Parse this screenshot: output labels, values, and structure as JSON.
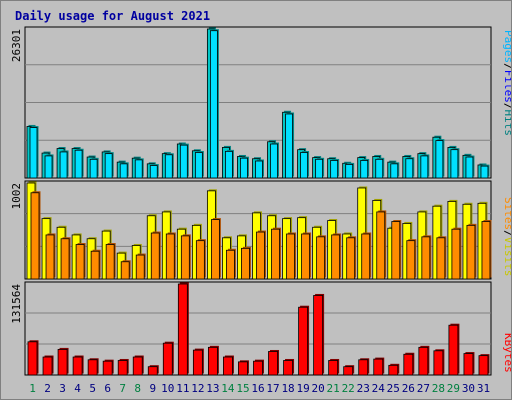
{
  "title": "Daily usage for August 2021",
  "colors": {
    "title": "#0000a0",
    "pages": "#00b4ff",
    "pages_dark": "#00708a",
    "files": "#00e0ff",
    "files_dark": "#008888",
    "hits": "#00c8c8",
    "hits_dark": "#008080",
    "sites": "#ff8c00",
    "sites_dark": "#b05000",
    "visits": "#ffff00",
    "visits_dark": "#a0a000",
    "kbytes": "#ff0000",
    "kbytes_dark": "#800000",
    "weekend": "#008040",
    "weekday": "#000080"
  },
  "side_labels": {
    "pages": "Pages",
    "files": "Files",
    "hits": "Hits",
    "sites": "Sites",
    "visits": "Visits",
    "kbytes": "KBytes",
    "slash": "/"
  },
  "chart_data": [
    {
      "type": "bar",
      "panel": "hits-files-pages",
      "y_max_label": "26301",
      "ylim": [
        0,
        26301
      ],
      "categories": [
        "1",
        "2",
        "3",
        "4",
        "5",
        "6",
        "7",
        "8",
        "9",
        "10",
        "11",
        "12",
        "13",
        "14",
        "15",
        "16",
        "17",
        "18",
        "19",
        "20",
        "21",
        "22",
        "23",
        "24",
        "25",
        "26",
        "27",
        "28",
        "29",
        "30",
        "31"
      ],
      "series": [
        {
          "name": "Hits",
          "values": [
            9100,
            4400,
            5200,
            5200,
            3700,
            4600,
            2800,
            3500,
            2500,
            4300,
            6000,
            4800,
            26301,
            5400,
            3800,
            3400,
            6400,
            11600,
            5000,
            3600,
            3400,
            2600,
            3600,
            3800,
            2800,
            3800,
            4300,
            7200,
            5400,
            4000,
            2300
          ]
        },
        {
          "name": "Files",
          "values": [
            8900,
            3900,
            4600,
            4900,
            3300,
            4300,
            2500,
            3200,
            2200,
            4100,
            5800,
            4500,
            26000,
            4700,
            3500,
            3000,
            6000,
            11300,
            4500,
            3300,
            3100,
            2400,
            3100,
            3300,
            2500,
            3400,
            3900,
            6600,
            5000,
            3700,
            2100
          ]
        },
        {
          "name": "Pages",
          "values": [
            0,
            0,
            0,
            0,
            0,
            0,
            0,
            0,
            0,
            0,
            0,
            0,
            0,
            0,
            0,
            0,
            0,
            0,
            0,
            0,
            0,
            0,
            0,
            0,
            0,
            0,
            0,
            0,
            0,
            0,
            0
          ]
        }
      ]
    },
    {
      "type": "bar",
      "panel": "visits-sites",
      "y_max_label": "1002",
      "ylim": [
        0,
        1002
      ],
      "categories": [
        "1",
        "2",
        "3",
        "4",
        "5",
        "6",
        "7",
        "8",
        "9",
        "10",
        "11",
        "12",
        "13",
        "14",
        "15",
        "16",
        "17",
        "18",
        "19",
        "20",
        "21",
        "22",
        "23",
        "24",
        "25",
        "26",
        "27",
        "28",
        "29",
        "30",
        "31"
      ],
      "series": [
        {
          "name": "Visits",
          "values": [
            1002,
            630,
            540,
            460,
            420,
            500,
            270,
            350,
            660,
            700,
            520,
            560,
            920,
            430,
            450,
            690,
            660,
            630,
            640,
            540,
            610,
            470,
            950,
            820,
            530,
            580,
            700,
            760,
            810,
            780,
            790
          ]
        },
        {
          "name": "Sites",
          "values": [
            900,
            460,
            420,
            360,
            290,
            360,
            180,
            250,
            480,
            470,
            450,
            400,
            620,
            300,
            320,
            490,
            520,
            470,
            470,
            440,
            460,
            430,
            470,
            700,
            600,
            400,
            440,
            430,
            520,
            560,
            600
          ]
        }
      ]
    },
    {
      "type": "bar",
      "panel": "kbytes",
      "y_max_label": "131564",
      "ylim": [
        0,
        131564
      ],
      "categories": [
        "1",
        "2",
        "3",
        "4",
        "5",
        "6",
        "7",
        "8",
        "9",
        "10",
        "11",
        "12",
        "13",
        "14",
        "15",
        "16",
        "17",
        "18",
        "19",
        "20",
        "21",
        "22",
        "23",
        "24",
        "25",
        "26",
        "27",
        "28",
        "29",
        "30",
        "31"
      ],
      "series": [
        {
          "name": "KBytes",
          "values": [
            48000,
            26000,
            37000,
            26000,
            22000,
            20000,
            21000,
            26000,
            12000,
            46000,
            131564,
            36000,
            40000,
            26000,
            19000,
            20000,
            34000,
            21000,
            98000,
            115000,
            21000,
            12000,
            22000,
            23000,
            14000,
            30000,
            40000,
            35000,
            72000,
            31000,
            28000
          ]
        }
      ]
    }
  ],
  "weekend_days": [
    1,
    7,
    8,
    14,
    15,
    21,
    22,
    28,
    29
  ]
}
